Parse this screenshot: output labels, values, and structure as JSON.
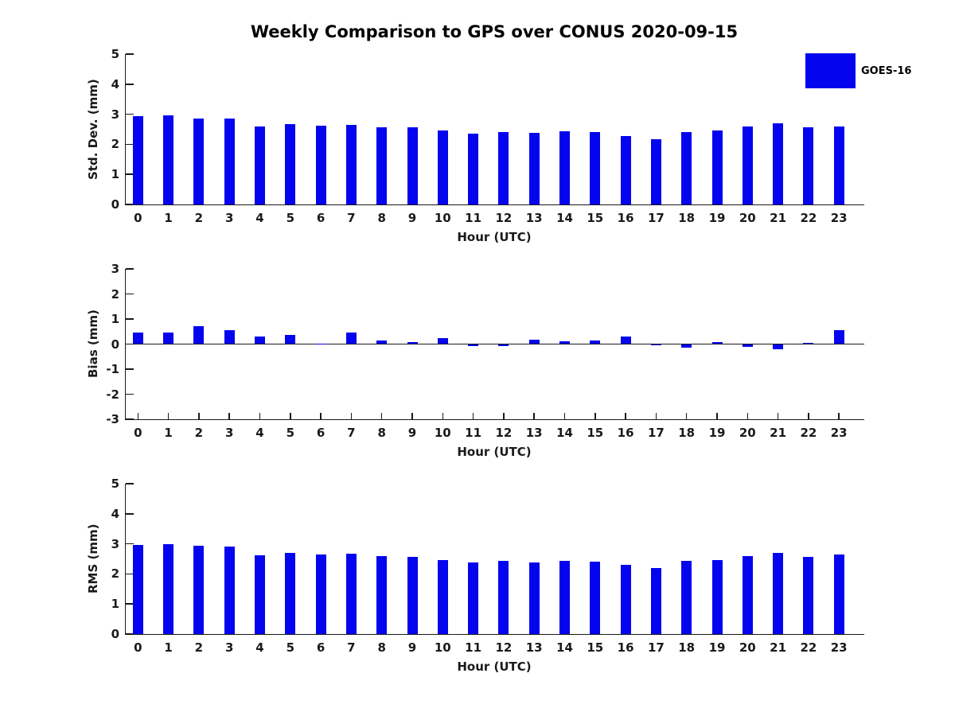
{
  "figure": {
    "title": "Weekly Comparison to GPS over CONUS 2020-09-15",
    "background_color": "#ffffff",
    "bar_color": "#0404ee",
    "axis_color": "#1a1a1a",
    "legend": {
      "label": "GOES-16",
      "swatch_color": "#0404ee",
      "position": "top-right"
    }
  },
  "chart_data": [
    {
      "type": "bar",
      "ylabel": "Std. Dev. (mm)",
      "xlabel": "Hour (UTC)",
      "categories": [
        0,
        1,
        2,
        3,
        4,
        5,
        6,
        7,
        8,
        9,
        10,
        11,
        12,
        13,
        14,
        15,
        16,
        17,
        18,
        19,
        20,
        21,
        22,
        23
      ],
      "values": [
        2.93,
        2.96,
        2.86,
        2.86,
        2.6,
        2.67,
        2.62,
        2.65,
        2.57,
        2.57,
        2.45,
        2.35,
        2.42,
        2.37,
        2.43,
        2.4,
        2.27,
        2.18,
        2.42,
        2.45,
        2.58,
        2.69,
        2.57,
        2.59
      ],
      "ylim": [
        0,
        5
      ],
      "yticks": [
        0,
        1,
        2,
        3,
        4,
        5
      ],
      "grid": false,
      "series_name": "GOES-16"
    },
    {
      "type": "bar",
      "ylabel": "Bias (mm)",
      "xlabel": "Hour (UTC)",
      "categories": [
        0,
        1,
        2,
        3,
        4,
        5,
        6,
        7,
        8,
        9,
        10,
        11,
        12,
        13,
        14,
        15,
        16,
        17,
        18,
        19,
        20,
        21,
        22,
        23
      ],
      "values": [
        0.45,
        0.47,
        0.7,
        0.55,
        0.3,
        0.36,
        0.02,
        0.45,
        0.15,
        0.08,
        0.24,
        -0.07,
        -0.08,
        0.16,
        0.12,
        0.13,
        0.29,
        -0.02,
        -0.15,
        0.07,
        -0.11,
        -0.2,
        0.06,
        0.55
      ],
      "ylim": [
        -3,
        3
      ],
      "yticks": [
        -3,
        -2,
        -1,
        0,
        1,
        2,
        3
      ],
      "grid": false,
      "series_name": "GOES-16"
    },
    {
      "type": "bar",
      "ylabel": "RMS (mm)",
      "xlabel": "Hour (UTC)",
      "categories": [
        0,
        1,
        2,
        3,
        4,
        5,
        6,
        7,
        8,
        9,
        10,
        11,
        12,
        13,
        14,
        15,
        16,
        17,
        18,
        19,
        20,
        21,
        22,
        23
      ],
      "values": [
        2.96,
        2.99,
        2.94,
        2.92,
        2.61,
        2.69,
        2.64,
        2.68,
        2.58,
        2.57,
        2.47,
        2.37,
        2.43,
        2.37,
        2.44,
        2.41,
        2.29,
        2.2,
        2.44,
        2.46,
        2.58,
        2.7,
        2.57,
        2.65
      ],
      "ylim": [
        0,
        5
      ],
      "yticks": [
        0,
        1,
        2,
        3,
        4,
        5
      ],
      "grid": false,
      "series_name": "GOES-16"
    }
  ]
}
